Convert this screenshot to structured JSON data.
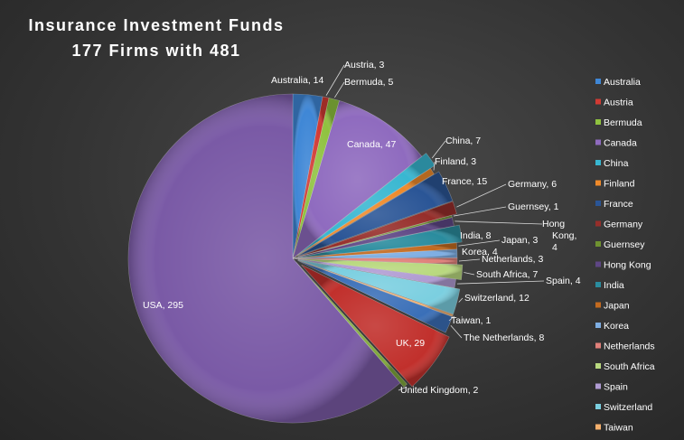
{
  "chart_data": {
    "type": "pie",
    "title": [
      "Insurance  Investment Funds",
      "177 Firms with 481"
    ],
    "series": [
      {
        "name": "Australia",
        "value": 14,
        "label": "Australia, 14",
        "color": "#3f87d6"
      },
      {
        "name": "Austria",
        "value": 3,
        "label": "Austria, 3",
        "color": "#d13a33"
      },
      {
        "name": "Bermuda",
        "value": 5,
        "label": "Bermuda, 5",
        "color": "#8fc23f"
      },
      {
        "name": "Canada",
        "value": 47,
        "label": "Canada, 47",
        "color": "#8f6bbf"
      },
      {
        "name": "China",
        "value": 7,
        "label": "China, 7",
        "color": "#38b7d1"
      },
      {
        "name": "Finland",
        "value": 3,
        "label": "Finland, 3",
        "color": "#ef8a2a"
      },
      {
        "name": "France",
        "value": 15,
        "label": "France, 15",
        "color": "#2a5596"
      },
      {
        "name": "Germany",
        "value": 6,
        "label": "Germany, 6",
        "color": "#962e2a"
      },
      {
        "name": "Guernsey",
        "value": 1,
        "label": "Guernsey, 1",
        "color": "#6f9230"
      },
      {
        "name": "Hong Kong",
        "value": 4,
        "label": "Hong Kong, 4",
        "color": "#5e4685"
      },
      {
        "name": "India",
        "value": 8,
        "label": "India, 8",
        "color": "#2a8c9e"
      },
      {
        "name": "Japan",
        "value": 3,
        "label": "Japan, 3",
        "color": "#c36a1f"
      },
      {
        "name": "Korea",
        "value": 4,
        "label": "Korea, 4",
        "color": "#7eaee3"
      },
      {
        "name": "Netherlands",
        "value": 3,
        "label": "Netherlands, 3",
        "color": "#e0807a"
      },
      {
        "name": "South Africa",
        "value": 7,
        "label": "South Africa, 7",
        "color": "#b9d97f"
      },
      {
        "name": "Spain",
        "value": 4,
        "label": "Spain, 4",
        "color": "#b09bd3"
      },
      {
        "name": "Switzerland",
        "value": 12,
        "label": "Switzerland, 12",
        "color": "#7bcfe0"
      },
      {
        "name": "Taiwan",
        "value": 1,
        "label": "Taiwan, 1",
        "color": "#f5b06d"
      },
      {
        "name": "The Netherlands",
        "value": 8,
        "label": "The Netherlands, 8",
        "color": "#3a6fb8"
      },
      {
        "name": "UK",
        "value": 29,
        "label": "UK, 29",
        "color": "#c1302c"
      },
      {
        "name": "United Kingdom",
        "value": 2,
        "label": "United Kingdom, 2",
        "color": "#7fa83a"
      },
      {
        "name": "USA",
        "value": 295,
        "label": "USA, 295",
        "color": "#7a5aa6"
      }
    ],
    "legend": [
      "Australia",
      "Austria",
      "Bermuda",
      "Canada",
      "China",
      "Finland",
      "France",
      "Germany",
      "Guernsey",
      "Hong Kong",
      "India",
      "Japan",
      "Korea",
      "Netherlands",
      "South Africa",
      "Spain",
      "Switzerland",
      "Taiwan"
    ],
    "legend_position": "right"
  }
}
